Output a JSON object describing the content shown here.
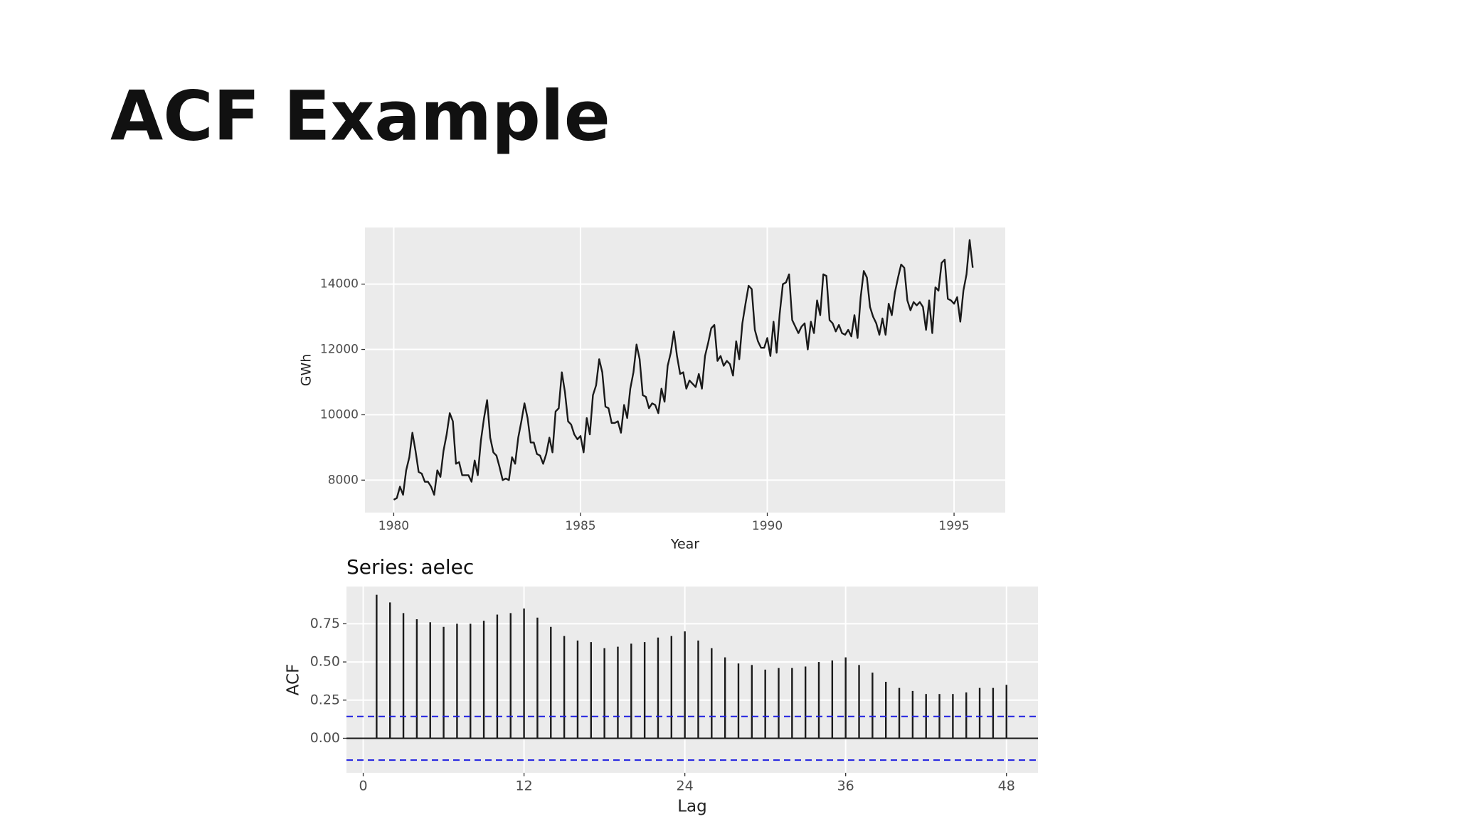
{
  "title": "ACF Example",
  "chart_data": [
    {
      "type": "line",
      "color": "#1a1a1a",
      "x_label": "Year",
      "y_label": "GWh",
      "grid": true,
      "xlim": [
        1979.23,
        1996.37
      ],
      "xticks": [
        1980,
        1985,
        1990,
        1995
      ],
      "ylim": [
        7006,
        15733
      ],
      "yticks": [
        8000,
        10000,
        12000,
        14000
      ],
      "x": [
        1980,
        1980.083,
        1980.167,
        1980.25,
        1980.333,
        1980.417,
        1980.5,
        1980.583,
        1980.667,
        1980.75,
        1980.833,
        1980.917,
        1981,
        1981.083,
        1981.167,
        1981.25,
        1981.333,
        1981.417,
        1981.5,
        1981.583,
        1981.667,
        1981.75,
        1981.833,
        1981.917,
        1982,
        1982.083,
        1982.167,
        1982.25,
        1982.333,
        1982.417,
        1982.5,
        1982.583,
        1982.667,
        1982.75,
        1982.833,
        1982.917,
        1983,
        1983.083,
        1983.167,
        1983.25,
        1983.333,
        1983.417,
        1983.5,
        1983.583,
        1983.667,
        1983.75,
        1983.833,
        1983.917,
        1984,
        1984.083,
        1984.167,
        1984.25,
        1984.333,
        1984.417,
        1984.5,
        1984.583,
        1984.667,
        1984.75,
        1984.833,
        1984.917,
        1985,
        1985.083,
        1985.167,
        1985.25,
        1985.333,
        1985.417,
        1985.5,
        1985.583,
        1985.667,
        1985.75,
        1985.833,
        1985.917,
        1986,
        1986.083,
        1986.167,
        1986.25,
        1986.333,
        1986.417,
        1986.5,
        1986.583,
        1986.667,
        1986.75,
        1986.833,
        1986.917,
        1987,
        1987.083,
        1987.167,
        1987.25,
        1987.333,
        1987.417,
        1987.5,
        1987.583,
        1987.667,
        1987.75,
        1987.833,
        1987.917,
        1988,
        1988.083,
        1988.167,
        1988.25,
        1988.333,
        1988.417,
        1988.5,
        1988.583,
        1988.667,
        1988.75,
        1988.833,
        1988.917,
        1989,
        1989.083,
        1989.167,
        1989.25,
        1989.333,
        1989.417,
        1989.5,
        1989.583,
        1989.667,
        1989.75,
        1989.833,
        1989.917,
        1990,
        1990.083,
        1990.167,
        1990.25,
        1990.333,
        1990.417,
        1990.5,
        1990.583,
        1990.667,
        1990.75,
        1990.833,
        1990.917,
        1991,
        1991.083,
        1991.167,
        1991.25,
        1991.333,
        1991.417,
        1991.5,
        1991.583,
        1991.667,
        1991.75,
        1991.833,
        1991.917,
        1992,
        1992.083,
        1992.167,
        1992.25,
        1992.333,
        1992.417,
        1992.5,
        1992.583,
        1992.667,
        1992.75,
        1992.833,
        1992.917,
        1993,
        1993.083,
        1993.167,
        1993.25,
        1993.333,
        1993.417,
        1993.5,
        1993.583,
        1993.667,
        1993.75,
        1993.833,
        1993.917,
        1994,
        1994.083,
        1994.167,
        1994.25,
        1994.333,
        1994.417,
        1994.5,
        1994.583,
        1994.667,
        1994.75,
        1994.833,
        1994.917,
        1995,
        1995.083,
        1995.167,
        1995.25,
        1995.333,
        1995.417,
        1995.5
      ],
      "values": [
        7400,
        7450,
        7800,
        7550,
        8300,
        8700,
        9450,
        8900,
        8250,
        8200,
        7950,
        7950,
        7800,
        7550,
        8300,
        8100,
        8900,
        9400,
        10050,
        9800,
        8500,
        8550,
        8150,
        8150,
        8150,
        7950,
        8600,
        8150,
        9200,
        9900,
        10450,
        9300,
        8850,
        8750,
        8400,
        8000,
        8050,
        8000,
        8700,
        8500,
        9300,
        9800,
        10350,
        9900,
        9150,
        9150,
        8800,
        8750,
        8500,
        8800,
        9300,
        8850,
        10100,
        10200,
        11300,
        10700,
        9800,
        9700,
        9400,
        9250,
        9350,
        8850,
        9900,
        9400,
        10600,
        10900,
        11700,
        11300,
        10250,
        10200,
        9750,
        9750,
        9800,
        9450,
        10300,
        9900,
        10800,
        11300,
        12150,
        11700,
        10600,
        10550,
        10200,
        10350,
        10300,
        10050,
        10800,
        10400,
        11500,
        11900,
        12550,
        11800,
        11250,
        11300,
        10800,
        11050,
        10950,
        10850,
        11250,
        10800,
        11800,
        12200,
        12650,
        12750,
        11650,
        11800,
        11500,
        11650,
        11550,
        11200,
        12250,
        11700,
        12800,
        13400,
        13950,
        13850,
        12600,
        12250,
        12050,
        12050,
        12350,
        11800,
        12850,
        11900,
        13100,
        14000,
        14050,
        14300,
        12900,
        12700,
        12500,
        12700,
        12800,
        12000,
        12850,
        12500,
        13500,
        13050,
        14300,
        14250,
        12900,
        12800,
        12550,
        12750,
        12500,
        12450,
        12600,
        12400,
        13050,
        12350,
        13600,
        14400,
        14200,
        13300,
        13000,
        12800,
        12450,
        12950,
        12450,
        13400,
        13050,
        13750,
        14200,
        14600,
        14500,
        13500,
        13200,
        13450,
        13350,
        13450,
        13300,
        12600,
        13500,
        12500,
        13900,
        13800,
        14650,
        14750,
        13550,
        13500,
        13400,
        13600,
        12850,
        13800,
        14300,
        15350,
        14500
      ]
    },
    {
      "type": "bar",
      "title": "Series: aelec",
      "color": "#1a1a1a",
      "x_label": "Lag",
      "y_label": "ACF",
      "grid": true,
      "xlim": [
        -1.25,
        50.35
      ],
      "xticks": [
        0,
        12,
        24,
        36,
        48
      ],
      "ylim": [
        -0.226,
        0.994
      ],
      "yticks": [
        {
          "value": 0,
          "label": "0.00"
        },
        {
          "value": 0.25,
          "label": "0.25"
        },
        {
          "value": 0.5,
          "label": "0.50"
        },
        {
          "value": 0.75,
          "label": "0.75"
        }
      ],
      "bounds": [
        0.143,
        -0.143
      ],
      "bounds_color": "#1f1fe0",
      "x": [
        1,
        2,
        3,
        4,
        5,
        6,
        7,
        8,
        9,
        10,
        11,
        12,
        13,
        14,
        15,
        16,
        17,
        18,
        19,
        20,
        21,
        22,
        23,
        24,
        25,
        26,
        27,
        28,
        29,
        30,
        31,
        32,
        33,
        34,
        35,
        36,
        37,
        38,
        39,
        40,
        41,
        42,
        43,
        44,
        45,
        46,
        47,
        48
      ],
      "values": [
        0.94,
        0.89,
        0.82,
        0.78,
        0.76,
        0.73,
        0.75,
        0.75,
        0.77,
        0.81,
        0.82,
        0.85,
        0.79,
        0.73,
        0.67,
        0.64,
        0.63,
        0.59,
        0.6,
        0.62,
        0.63,
        0.66,
        0.67,
        0.7,
        0.64,
        0.59,
        0.53,
        0.49,
        0.48,
        0.45,
        0.46,
        0.46,
        0.47,
        0.5,
        0.51,
        0.53,
        0.48,
        0.43,
        0.37,
        0.33,
        0.31,
        0.29,
        0.29,
        0.29,
        0.3,
        0.33,
        0.33,
        0.35
      ]
    }
  ]
}
